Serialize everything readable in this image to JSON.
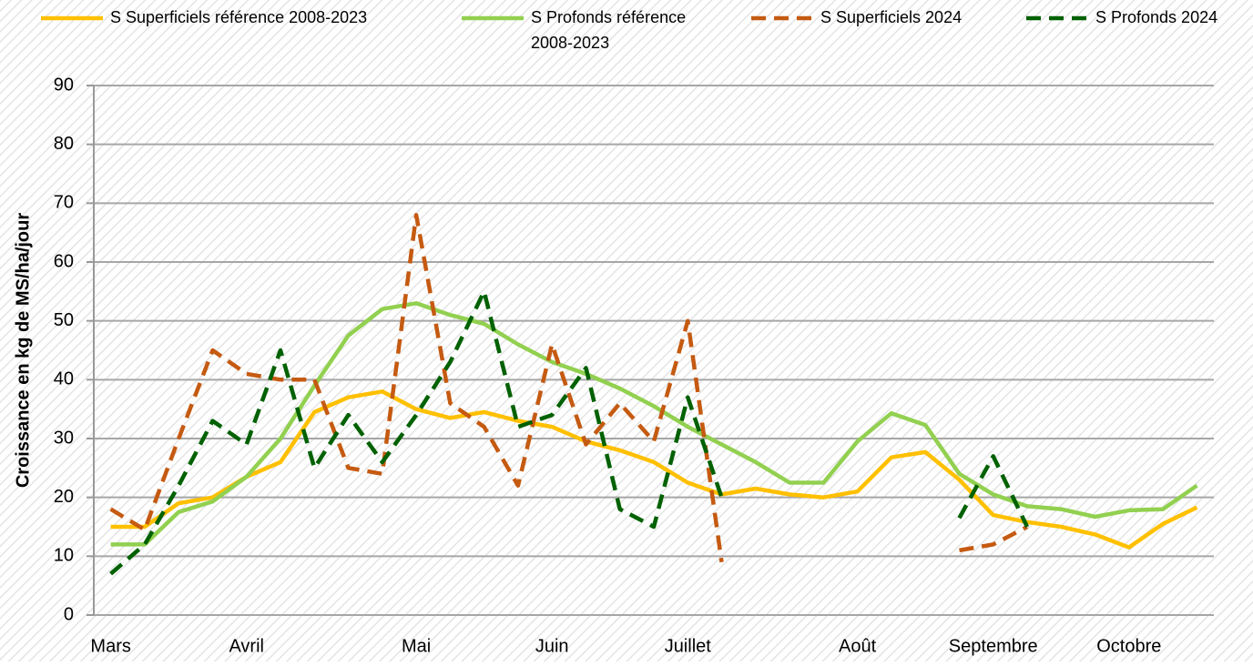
{
  "chart_data": {
    "type": "line",
    "y_label": "Croissance en kg de MS/ha/jour",
    "categories": [
      "Mars",
      null,
      null,
      null,
      "Avril",
      null,
      null,
      null,
      null,
      "Mai",
      null,
      null,
      null,
      "Juin",
      null,
      null,
      null,
      "Juillet",
      null,
      null,
      null,
      null,
      "Août",
      null,
      null,
      null,
      "Septembre",
      null,
      null,
      null,
      "Octobre",
      null,
      null
    ],
    "ylim": [
      0,
      90
    ],
    "yticks": [
      0,
      10,
      20,
      30,
      40,
      50,
      60,
      70,
      80,
      90
    ],
    "grid": true,
    "series": [
      {
        "name": "S Superficiels référence 2008-2023",
        "color": "#ffc000",
        "dashed": false,
        "values": [
          15,
          15,
          19,
          20,
          23.5,
          26,
          34.5,
          37,
          38,
          35,
          33.5,
          34.5,
          33,
          32,
          29.5,
          28,
          26,
          22.5,
          20.5,
          21.5,
          20.5,
          20,
          21,
          26.8,
          27.7,
          23,
          17,
          15.8,
          15,
          13.7,
          11.5,
          15.5,
          18.3
        ]
      },
      {
        "name": "S Profonds référence 2008-2023",
        "color": "#92d050",
        "dashed": false,
        "values": [
          12,
          12,
          17.5,
          19.3,
          23.5,
          30,
          39,
          47.5,
          52,
          53,
          51,
          49.5,
          46,
          43,
          41,
          38.5,
          35.5,
          32,
          29,
          26,
          22.5,
          22.5,
          29.5,
          34.3,
          32.3,
          24,
          20.5,
          18.5,
          18,
          16.7,
          17.8,
          18,
          22
        ]
      },
      {
        "name": "S Superficiels 2024",
        "color": "#c55a11",
        "dashed": true,
        "values": [
          18,
          14.5,
          30,
          45,
          41,
          40,
          40,
          25,
          24,
          68,
          36,
          32,
          22,
          46,
          29,
          36,
          29.5,
          50,
          9,
          null,
          null,
          null,
          null,
          null,
          null,
          11,
          12,
          15,
          null,
          null,
          null,
          null,
          null
        ]
      },
      {
        "name": "S Profonds 2024",
        "color": "#006100",
        "dashed": true,
        "values": [
          7,
          12,
          22,
          33,
          29,
          45,
          25,
          34,
          26,
          34,
          43,
          55,
          32,
          34,
          42,
          18,
          15,
          37,
          20,
          null,
          null,
          null,
          null,
          null,
          null,
          16.5,
          27,
          15,
          null,
          null,
          null,
          null,
          null
        ]
      }
    ]
  }
}
